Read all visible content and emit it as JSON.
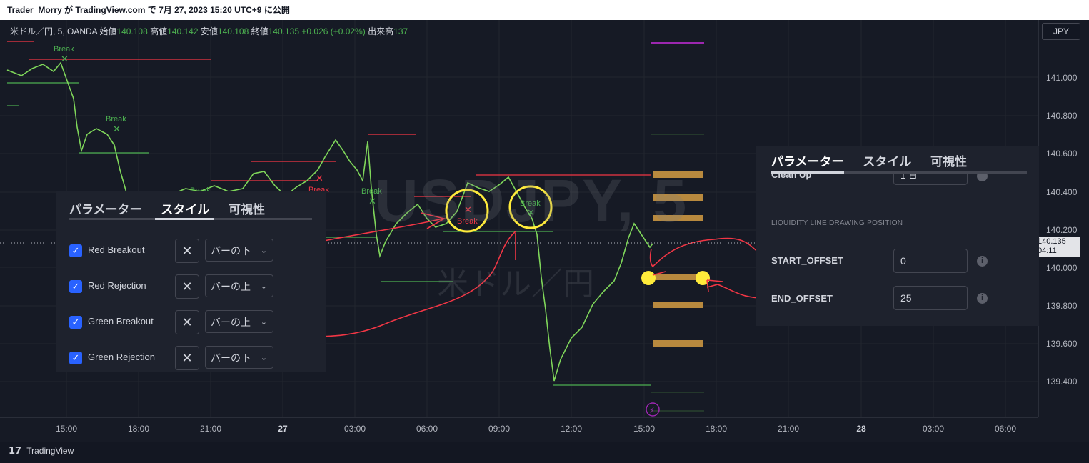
{
  "header": {
    "publish_line": "Trader_Morry が TradingView.com で 7月 27, 2023 15:20 UTC+9 に公開"
  },
  "symbol_info": {
    "name": "米ドル／円, 5, OANDA",
    "open_label": "始値",
    "open": "140.108",
    "high_label": "高値",
    "high": "140.142",
    "low_label": "安値",
    "low": "140.108",
    "close_label": "終値",
    "close": "140.135",
    "change": "+0.026 (+0.02%)",
    "volume_label": "出来高",
    "volume": "137"
  },
  "currency_button": "JPY",
  "watermark": {
    "title": "USDJPY, 5",
    "subtitle": "米ドル／円"
  },
  "price_axis": {
    "labels": [
      "141.000",
      "140.800",
      "140.600",
      "140.400",
      "140.200",
      "140.000",
      "139.800",
      "139.600",
      "139.400"
    ],
    "current_price": "140.135",
    "countdown": "04:11"
  },
  "time_axis": {
    "labels": [
      "15:00",
      "18:00",
      "21:00",
      "27",
      "03:00",
      "06:00",
      "09:00",
      "12:00",
      "15:00",
      "18:00",
      "21:00",
      "28",
      "03:00",
      "06:00"
    ]
  },
  "chart_marks": {
    "break_label": "Break"
  },
  "left_panel": {
    "tabs": [
      "パラメーター",
      "スタイル",
      "可視性"
    ],
    "active_tab": "スタイル",
    "rows": [
      {
        "label": "Red Breakout",
        "position": "バーの下",
        "checked": true
      },
      {
        "label": "Red Rejection",
        "position": "バーの上",
        "checked": true
      },
      {
        "label": "Green Breakout",
        "position": "バーの上",
        "checked": true
      },
      {
        "label": "Green Rejection",
        "position": "バーの下",
        "checked": true
      }
    ]
  },
  "right_panel": {
    "tabs": [
      "パラメーター",
      "スタイル",
      "可視性"
    ],
    "active_tab": "パラメーター",
    "partial_label": "Clean Up",
    "partial_value": "1 日",
    "section_title": "LIQUIDITY LINE DRAWING POSITION",
    "fields": [
      {
        "label": "START_OFFSET",
        "value": "0"
      },
      {
        "label": "END_OFFSET",
        "value": "25"
      }
    ]
  },
  "footer": {
    "brand": "TradingView"
  },
  "colors": {
    "background": "#161a25",
    "up": "#4caf50",
    "down": "#f23645",
    "annotation": "#ffeb3b",
    "liquidity": "#b8893e",
    "accent": "#2962ff"
  }
}
